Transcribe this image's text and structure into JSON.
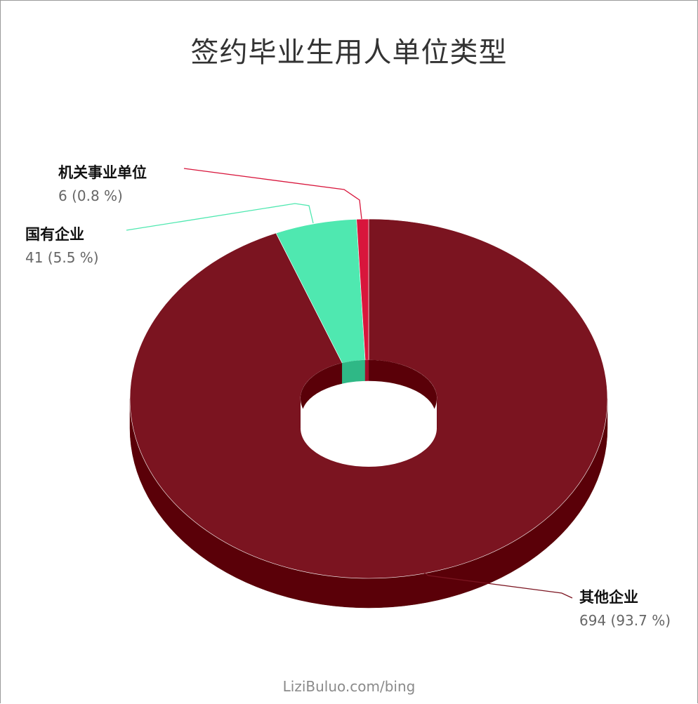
{
  "chart_data": {
    "type": "pie",
    "title": "签约毕业生用人单位类型",
    "slices": [
      {
        "name": "其他企业",
        "value": 694,
        "percent": "93.7 %",
        "color": "#7b1420",
        "side_color": "#5a0008"
      },
      {
        "name": "国有企业",
        "value": 41,
        "percent": "5.5 %",
        "color": "#4fe8b0",
        "side_color": "#2fb886"
      },
      {
        "name": "机关事业单位",
        "value": 6,
        "percent": "0.8 %",
        "color": "#d8163c",
        "side_color": "#a00c28"
      }
    ],
    "labels": [
      {
        "name": "其他企业",
        "value_text": "694 (93.7 %)"
      },
      {
        "name": "国有企业",
        "value_text": "41 (5.5 %)"
      },
      {
        "name": "机关事业单位",
        "value_text": "6 (0.8 %)"
      }
    ]
  },
  "watermark": "LiziBuluo.com/bing"
}
